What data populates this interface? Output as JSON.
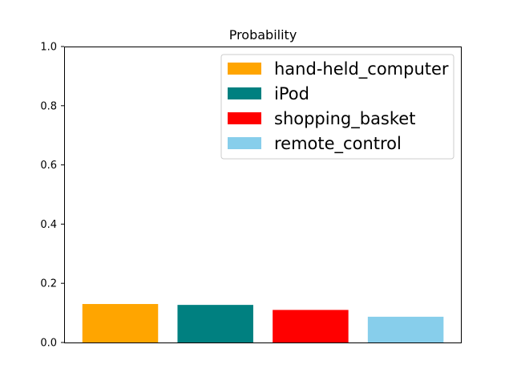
{
  "chart_data": {
    "type": "bar",
    "title": "Probability",
    "categories": [
      "hand-held_computer",
      "iPod",
      "shopping_basket",
      "remote_control"
    ],
    "values": [
      0.13,
      0.127,
      0.11,
      0.087
    ],
    "colors": [
      "#FFA500",
      "#008080",
      "#FF0000",
      "#87CEEB"
    ],
    "xlabel": "",
    "ylabel": "",
    "ylim": [
      0,
      1.0
    ],
    "yticks": [
      0.0,
      0.2,
      0.4,
      0.6,
      0.8,
      1.0
    ],
    "ytick_labels": [
      "0.0",
      "0.2",
      "0.4",
      "0.6",
      "0.8",
      "1.0"
    ],
    "x_tick_labels_visible": false,
    "grid": false,
    "legend": {
      "placement": "top-right",
      "entries": [
        "hand-held_computer",
        "iPod",
        "shopping_basket",
        "remote_control"
      ]
    }
  }
}
